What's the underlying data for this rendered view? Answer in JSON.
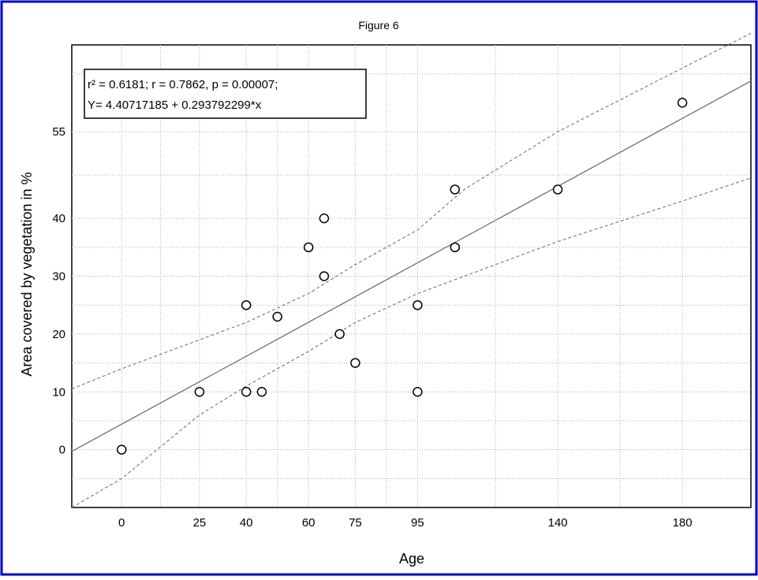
{
  "chart_data": {
    "type": "scatter",
    "title": "Figure 6",
    "xlabel": "Age",
    "ylabel": "Area covered by vegetation in %",
    "x_ticks": [
      0,
      25,
      40,
      60,
      75,
      95,
      140,
      180
    ],
    "y_ticks": [
      0,
      10,
      20,
      30,
      40,
      55
    ],
    "xlim": [
      -16,
      202
    ],
    "ylim": [
      -10,
      70
    ],
    "grid": true,
    "annotation": {
      "line1": "r² = 0.6181;  r = 0.7862, p = 0.00007;",
      "line2": "Y= 4.40717185 + 0.293792299*x"
    },
    "regression": {
      "intercept": 4.40717185,
      "slope": 0.293792299
    },
    "confidence_band": {
      "upper": [
        [
          -16,
          10.5
        ],
        [
          0,
          14
        ],
        [
          25,
          19
        ],
        [
          40,
          22
        ],
        [
          60,
          27
        ],
        [
          75,
          32
        ],
        [
          95,
          38
        ],
        [
          110,
          45
        ],
        [
          140,
          55
        ],
        [
          180,
          66
        ],
        [
          202,
          72
        ]
      ],
      "lower": [
        [
          -16,
          -10
        ],
        [
          0,
          -5
        ],
        [
          25,
          6
        ],
        [
          40,
          11
        ],
        [
          60,
          17
        ],
        [
          75,
          22
        ],
        [
          95,
          27
        ],
        [
          110,
          30
        ],
        [
          140,
          36
        ],
        [
          180,
          43
        ],
        [
          202,
          47
        ]
      ]
    },
    "points": [
      [
        0,
        0
      ],
      [
        25,
        10
      ],
      [
        40,
        10
      ],
      [
        40,
        25
      ],
      [
        45,
        10
      ],
      [
        50,
        23
      ],
      [
        60,
        35
      ],
      [
        65,
        40
      ],
      [
        65,
        30
      ],
      [
        70,
        20
      ],
      [
        75,
        15
      ],
      [
        95,
        25
      ],
      [
        95,
        10
      ],
      [
        107,
        45
      ],
      [
        107,
        35
      ],
      [
        140,
        45
      ],
      [
        180,
        60
      ]
    ],
    "colors": {
      "frame_border": "#0000cc",
      "line": "#707070",
      "band": "#808080",
      "grid": "#b0b0b0"
    }
  }
}
